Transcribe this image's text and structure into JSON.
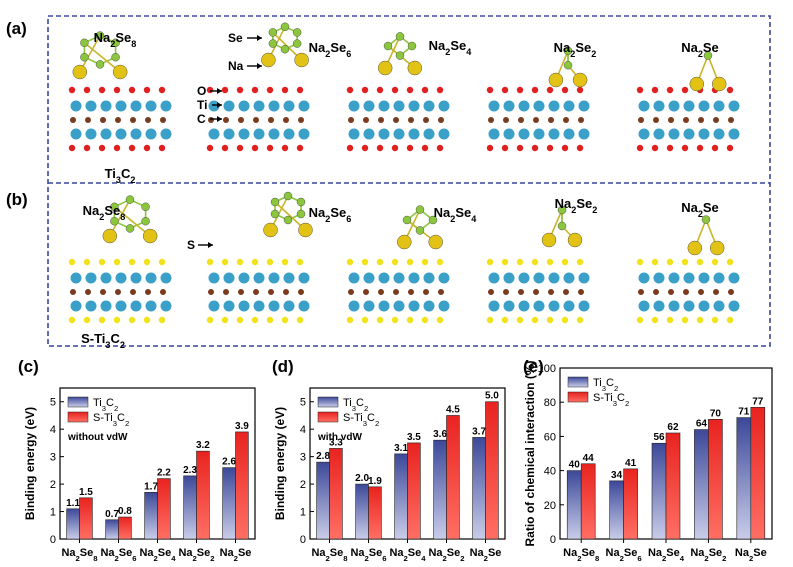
{
  "panel_letters": [
    "(a)",
    "(b)",
    "(c)",
    "(d)",
    "(e)"
  ],
  "colors": {
    "ti3c2_bar": "#4a56a8",
    "sti3c2_bar": "#e8231f",
    "frame": "#3a49a0",
    "atom_na": "#e3c216",
    "atom_se": "#8cc63f",
    "atom_ti": "#3aa0c8",
    "atom_c": "#7a3b1e",
    "atom_o": "#e01f1f",
    "atom_s": "#f2e21a"
  },
  "structures": {
    "row_a": [
      "Na2Se8",
      "Na2Se6",
      "Na2Se4",
      "Na2Se2",
      "Na2Se"
    ],
    "row_b": [
      "Na2Se8",
      "Na2Se6",
      "Na2Se4",
      "Na2Se2",
      "Na2Se"
    ],
    "substrate_a": "Ti3C2",
    "substrate_b": "S-Ti3C2",
    "atom_labels_a": [
      "Se",
      "Na",
      "O",
      "Ti",
      "C"
    ],
    "atom_labels_b": [
      "S"
    ]
  },
  "chart_data": [
    {
      "type": "bar",
      "panel": "(c)",
      "categories": [
        "Na2Se8",
        "Na2Se6",
        "Na2Se4",
        "Na2Se2",
        "Na2Se"
      ],
      "series": [
        {
          "name": "Ti3C2",
          "values": [
            1.1,
            0.7,
            1.7,
            2.3,
            2.6
          ],
          "labels": [
            "1.1",
            "0.7",
            "1.7",
            "2.3",
            "2.6"
          ]
        },
        {
          "name": "S-Ti3C2",
          "values": [
            1.5,
            0.8,
            2.2,
            3.2,
            3.9
          ],
          "labels": [
            "1.5",
            "0.8",
            "2.2",
            "3.2",
            "3.9"
          ]
        }
      ],
      "title": "",
      "annotation": "without vdW",
      "xlabel": "",
      "ylabel": "Binding energy (eV)",
      "ylim": [
        0,
        5.5
      ],
      "yticks": [
        0,
        1,
        2,
        3,
        4,
        5
      ],
      "legend": "top-left"
    },
    {
      "type": "bar",
      "panel": "(d)",
      "categories": [
        "Na2Se8",
        "Na2Se6",
        "Na2Se4",
        "Na2Se2",
        "Na2Se"
      ],
      "series": [
        {
          "name": "Ti3C2",
          "values": [
            2.8,
            2.0,
            3.1,
            3.6,
            3.7
          ],
          "labels": [
            "2.8",
            "2.0",
            "3.1",
            "3.6",
            "3.7"
          ]
        },
        {
          "name": "S-Ti3C2",
          "values": [
            3.3,
            1.9,
            3.5,
            4.5,
            5.0
          ],
          "labels": [
            "3.3",
            "1.9",
            "3.5",
            "4.5",
            "5.0"
          ]
        }
      ],
      "title": "",
      "annotation": "with vdW",
      "xlabel": "",
      "ylabel": "Binding energy (eV)",
      "ylim": [
        0,
        5.5
      ],
      "yticks": [
        0,
        1,
        2,
        3,
        4,
        5
      ],
      "legend": "top-left"
    },
    {
      "type": "bar",
      "panel": "(e)",
      "categories": [
        "Na2Se8",
        "Na2Se6",
        "Na2Se4",
        "Na2Se2",
        "Na2Se"
      ],
      "series": [
        {
          "name": "Ti3C2",
          "values": [
            40,
            34,
            56,
            64,
            71
          ],
          "labels": [
            "40",
            "34",
            "56",
            "64",
            "71"
          ]
        },
        {
          "name": "S-Ti3C2",
          "values": [
            44,
            41,
            62,
            70,
            77
          ],
          "labels": [
            "44",
            "41",
            "62",
            "70",
            "77"
          ]
        }
      ],
      "title": "",
      "annotation": "",
      "xlabel": "",
      "ylabel": "Ratio of chemical interaction (%)",
      "ylim": [
        0,
        100
      ],
      "yticks": [
        0,
        20,
        40,
        60,
        80,
        100
      ],
      "legend": "top-left"
    }
  ]
}
